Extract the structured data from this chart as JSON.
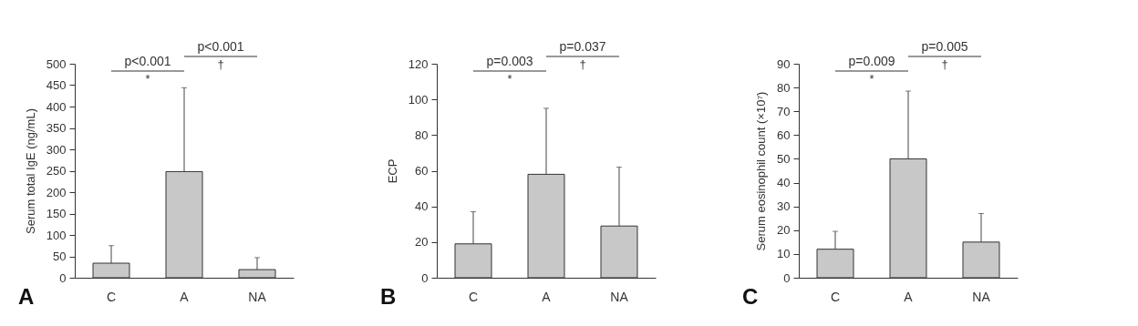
{
  "chart_data": [
    {
      "type": "bar",
      "ylabel": "Serum total IgE (ng/mL)",
      "categories": [
        "C",
        "A",
        "NA"
      ],
      "values": [
        34,
        248,
        19
      ],
      "errors": [
        [
          34,
          75
        ],
        [
          248,
          444
        ],
        [
          19,
          47
        ]
      ],
      "color": "#c8c8c8",
      "ylim": [
        0,
        500
      ],
      "yticks": [
        0,
        50,
        100,
        150,
        200,
        250,
        300,
        350,
        400,
        450,
        500
      ],
      "grid": false,
      "annotations": [
        "p<0.001",
        "*",
        "p<0.001",
        "†",
        "A"
      ]
    },
    {
      "type": "bar",
      "ylabel": "ECP",
      "categories": [
        "C",
        "A",
        "NA"
      ],
      "values": [
        19,
        58,
        29
      ],
      "errors": [
        [
          19,
          37
        ],
        [
          58,
          95
        ],
        [
          29,
          62
        ]
      ],
      "color": "#c8c8c8",
      "ylim": [
        0,
        120
      ],
      "yticks": [
        0,
        20,
        40,
        60,
        80,
        100,
        120
      ],
      "grid": false,
      "annotations": [
        "p=0.003",
        "*",
        "p=0.037",
        "†",
        "B"
      ]
    },
    {
      "type": "bar",
      "ylabel": "Serum eosinophil count (×10⁷)",
      "categories": [
        "C",
        "A",
        "NA"
      ],
      "values": [
        12,
        50,
        15
      ],
      "errors": [
        [
          12,
          19.5
        ],
        [
          50,
          78.5
        ],
        [
          15,
          27
        ]
      ],
      "color": "#c8c8c8",
      "ylim": [
        0,
        90
      ],
      "yticks": [
        0,
        10,
        20,
        30,
        40,
        50,
        60,
        70,
        80,
        90
      ],
      "grid": false,
      "annotations": [
        "p=0.009",
        "*",
        "p=0.005",
        "†",
        "C"
      ]
    }
  ]
}
